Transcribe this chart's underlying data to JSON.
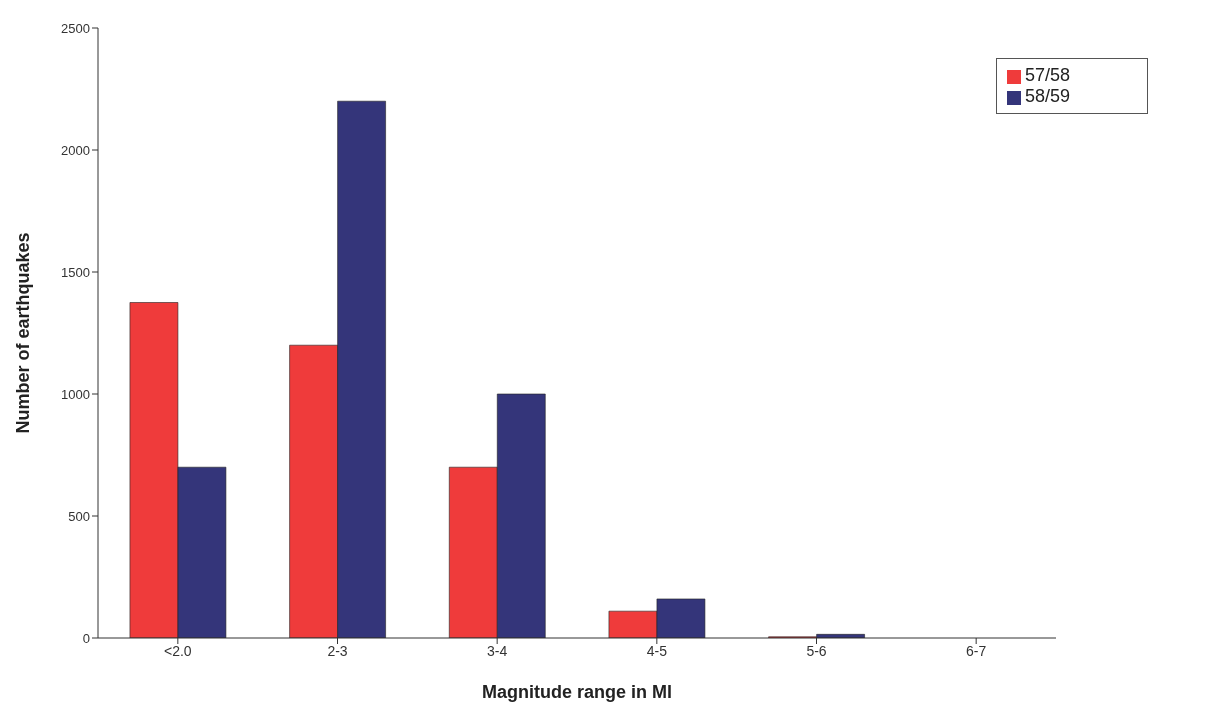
{
  "chart_data": {
    "type": "bar",
    "xlabel": "Magnitude range in Ml",
    "ylabel": "Number of earthquakes",
    "categories": [
      "<2.0",
      "2-3",
      "3-4",
      "4-5",
      "5-6",
      "6-7"
    ],
    "series": [
      {
        "name": "57/58",
        "color": "#ef3b3b",
        "values": [
          1375,
          1200,
          700,
          110,
          5,
          0
        ]
      },
      {
        "name": "58/59",
        "color": "#34357a",
        "values": [
          700,
          2200,
          1000,
          160,
          15,
          0
        ]
      }
    ],
    "ylim": [
      0,
      2500
    ],
    "yticks": [
      0,
      500,
      1000,
      1500,
      2000,
      2500
    ],
    "grid": false,
    "legend": "top right"
  }
}
